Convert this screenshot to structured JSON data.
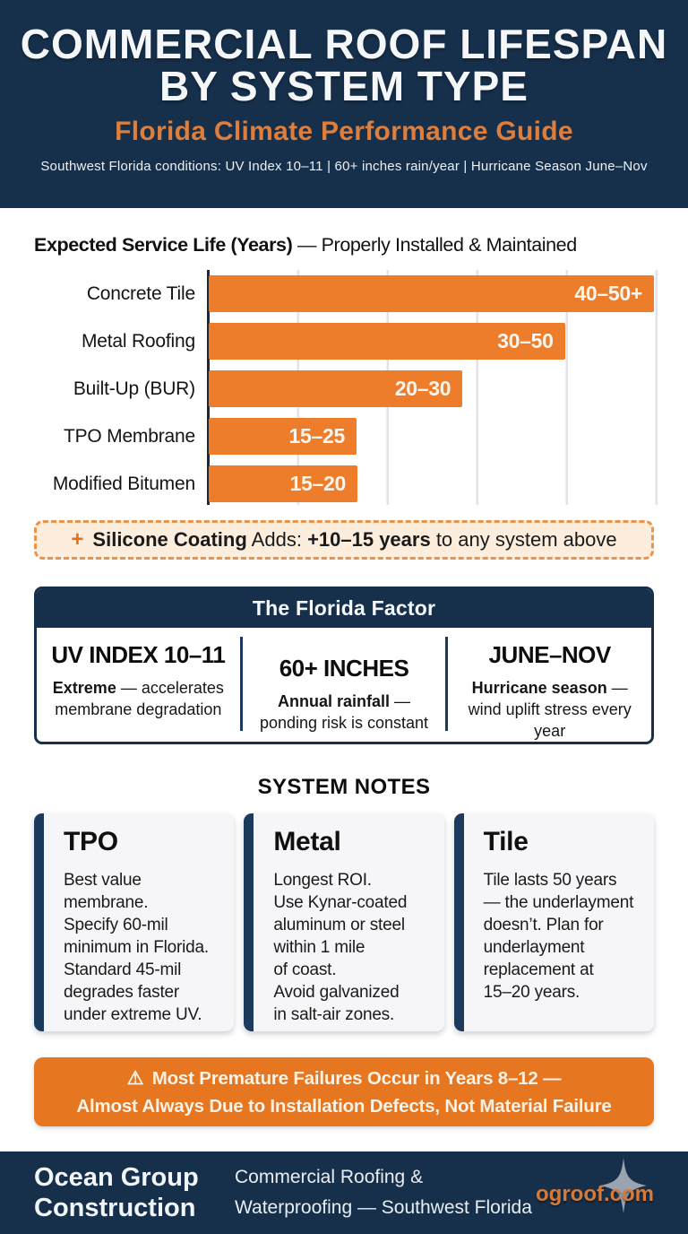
{
  "header": {
    "title": "COMMERCIAL ROOF LIFESPAN\nBY SYSTEM TYPE",
    "subtitle": "Florida Climate Performance Guide",
    "conditions": "Southwest Florida conditions: UV Index 10–11 | 60+ inches rain/year | Hurricane Season June–Nov"
  },
  "chart_data": {
    "type": "bar",
    "orientation": "horizontal",
    "title_bold": "Expected Service Life (Years)",
    "title_rest": " — Properly Installed & Maintained",
    "categories": [
      "Concrete Tile",
      "Metal Roofing",
      "Built-Up (BUR)",
      "TPO Membrane",
      "Modified Bitumen"
    ],
    "value_labels": [
      "40–50+",
      "30–50",
      "20–30",
      "15–25",
      "15–20"
    ],
    "ranges_years": [
      [
        40,
        50
      ],
      [
        30,
        50
      ],
      [
        20,
        30
      ],
      [
        15,
        25
      ],
      [
        15,
        20
      ]
    ],
    "bar_lengths_years": [
      50,
      40,
      28.5,
      16.6,
      16.7
    ],
    "bar_pct": [
      100,
      80,
      57,
      33.2,
      33.4
    ],
    "xlim": [
      0,
      50
    ],
    "gridline_interval_years": 10,
    "grid": "light vertical gridlines every 10 years, no tick labels, solid dark left baseline",
    "bar_color": "#ED7C2B",
    "value_label_position": "inside bar, right-aligned, white bold"
  },
  "callout": {
    "plus": "+",
    "bold1": "Silicone Coating",
    "mid": " Adds: ",
    "bold2": "+10–15 years",
    "tail": " to any system above"
  },
  "factor": {
    "title": "The Florida Factor",
    "columns": [
      {
        "headline": "UV INDEX 10–11",
        "lead": "Extreme",
        "rest": " — accelerates membrane degradation"
      },
      {
        "headline": "60+ INCHES",
        "lead": "Annual rainfall",
        "rest": " — ponding risk is constant"
      },
      {
        "headline": "JUNE–NOV",
        "lead": "Hurricane season",
        "rest": " — wind uplift stress every year"
      }
    ]
  },
  "notes": {
    "title": "SYSTEM NOTES",
    "cards": [
      {
        "title": "TPO",
        "body": "Best value\nmembrane.\nSpecify 60-mil\nminimum in Florida.\nStandard 45-mil\ndegrades faster\nunder extreme UV."
      },
      {
        "title": "Metal",
        "body": "Longest ROI.\nUse Kynar-coated\naluminum or steel\nwithin 1 mile\nof coast.\nAvoid galvanized\nin salt-air zones."
      },
      {
        "title": "Tile",
        "body": "Tile lasts 50 years\n— the underlayment\ndoesn’t. Plan for\nunderlayment\nreplacement at\n15–20 years."
      }
    ]
  },
  "banner": {
    "icon": "⚠",
    "line1": "Most Premature Failures Occur in Years 8–12 —",
    "line2": "Almost Always Due to Installation Defects, Not Material Failure"
  },
  "footer": {
    "brand": "Ocean Group\nConstruction",
    "tagline": "Commercial Roofing &\nWaterproofing — Southwest Florida",
    "website": "ogroof.com",
    "star_icon": "four-point-star"
  },
  "colors": {
    "navy": "#16304C",
    "bar_orange": "#ED7C2B",
    "header_subtitle_orange": "#DE7E3C",
    "banner_orange": "#E6761F",
    "callout_bg": "#FCEDDD",
    "callout_border": "#E9944A",
    "website_orange": "#D67A3A",
    "star_gray": "#9AA4B0",
    "card_bg": "#F6F6F8",
    "gridline": "#E3E3E8"
  }
}
